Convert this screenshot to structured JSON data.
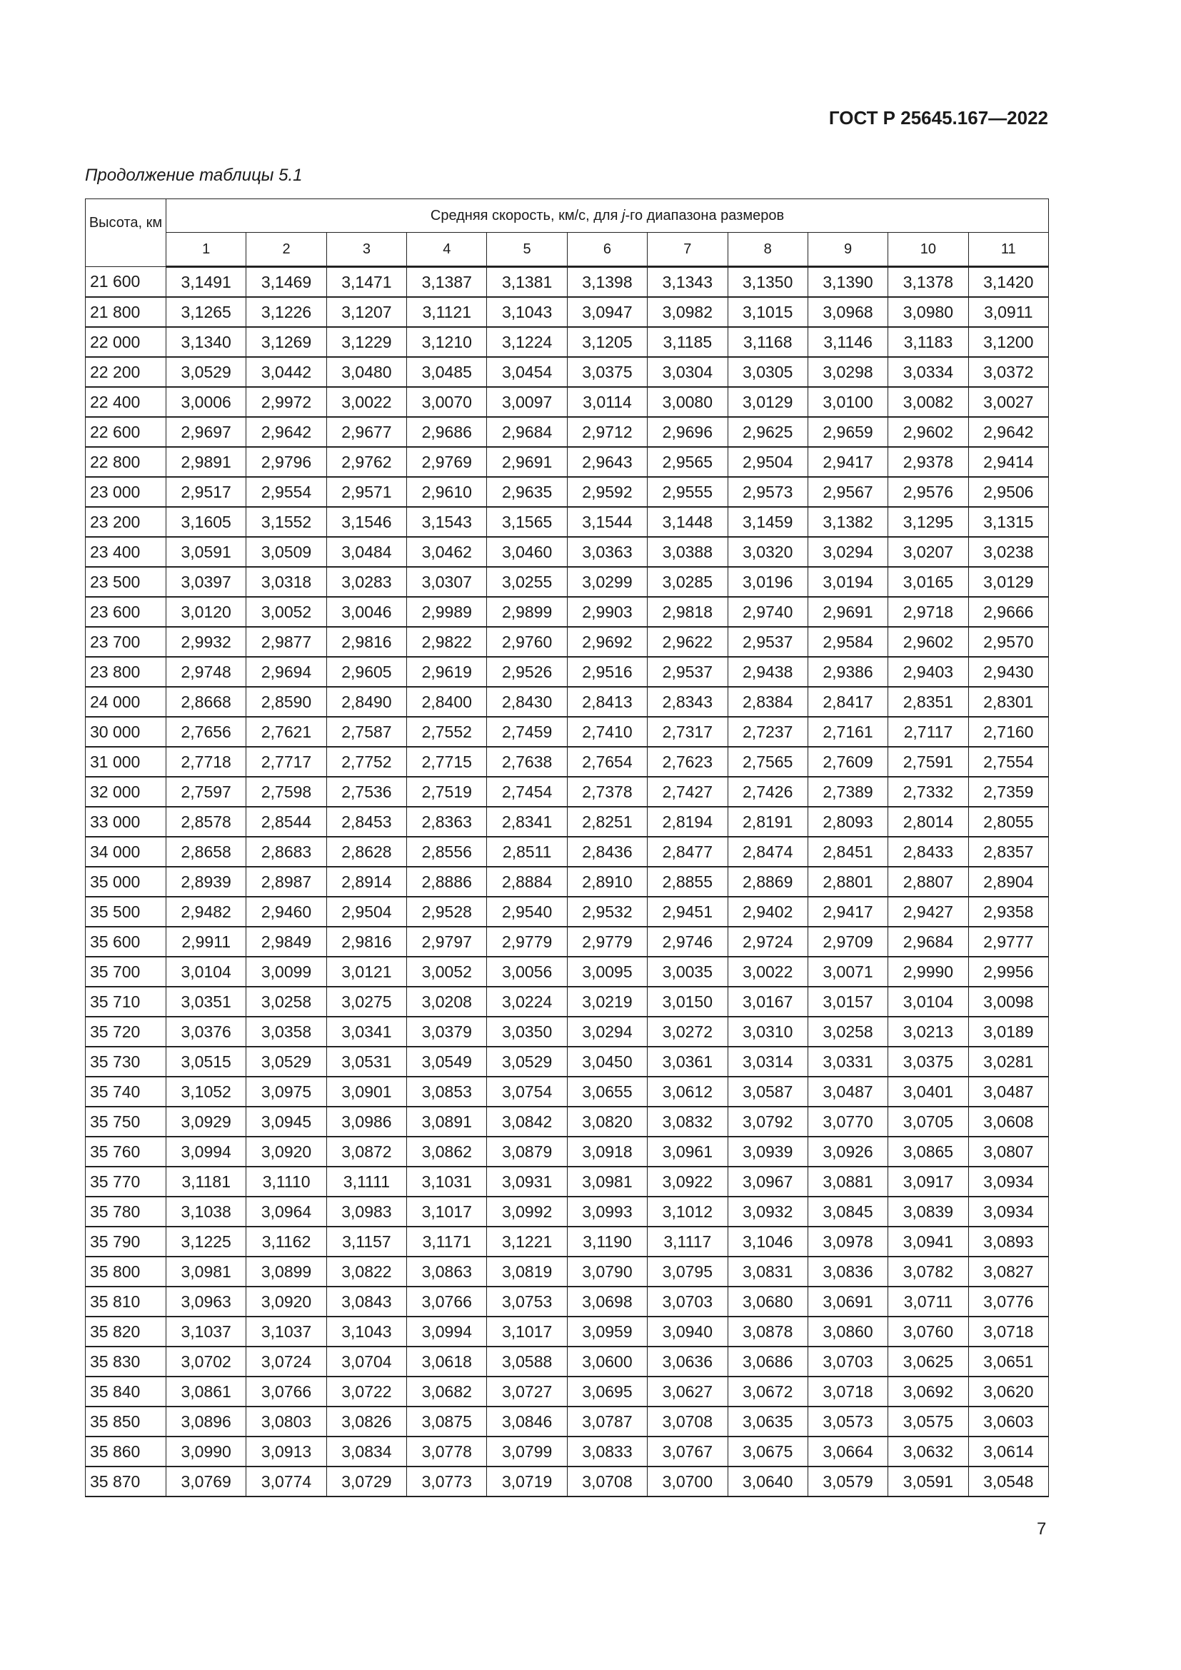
{
  "header": {
    "doc_code": "ГОСТ Р 25645.167—2022"
  },
  "caption": "Продолжение таблицы 5.1",
  "table": {
    "altitude_header": "Высота, км",
    "group_header_pre": "Средняя скорость, км/с, для ",
    "group_header_j": "j",
    "group_header_post": "-го диапазона размеров",
    "columns": [
      "1",
      "2",
      "3",
      "4",
      "5",
      "6",
      "7",
      "8",
      "9",
      "10",
      "11"
    ],
    "rows": [
      [
        "21 600",
        "3,1491",
        "3,1469",
        "3,1471",
        "3,1387",
        "3,1381",
        "3,1398",
        "3,1343",
        "3,1350",
        "3,1390",
        "3,1378",
        "3,1420"
      ],
      [
        "21 800",
        "3,1265",
        "3,1226",
        "3,1207",
        "3,1121",
        "3,1043",
        "3,0947",
        "3,0982",
        "3,1015",
        "3,0968",
        "3,0980",
        "3,0911"
      ],
      [
        "22 000",
        "3,1340",
        "3,1269",
        "3,1229",
        "3,1210",
        "3,1224",
        "3,1205",
        "3,1185",
        "3,1168",
        "3,1146",
        "3,1183",
        "3,1200"
      ],
      [
        "22 200",
        "3,0529",
        "3,0442",
        "3,0480",
        "3,0485",
        "3,0454",
        "3,0375",
        "3,0304",
        "3,0305",
        "3,0298",
        "3,0334",
        "3,0372"
      ],
      [
        "22 400",
        "3,0006",
        "2,9972",
        "3,0022",
        "3,0070",
        "3,0097",
        "3,0114",
        "3,0080",
        "3,0129",
        "3,0100",
        "3,0082",
        "3,0027"
      ],
      [
        "22 600",
        "2,9697",
        "2,9642",
        "2,9677",
        "2,9686",
        "2,9684",
        "2,9712",
        "2,9696",
        "2,9625",
        "2,9659",
        "2,9602",
        "2,9642"
      ],
      [
        "22 800",
        "2,9891",
        "2,9796",
        "2,9762",
        "2,9769",
        "2,9691",
        "2,9643",
        "2,9565",
        "2,9504",
        "2,9417",
        "2,9378",
        "2,9414"
      ],
      [
        "23 000",
        "2,9517",
        "2,9554",
        "2,9571",
        "2,9610",
        "2,9635",
        "2,9592",
        "2,9555",
        "2,9573",
        "2,9567",
        "2,9576",
        "2,9506"
      ],
      [
        "23 200",
        "3,1605",
        "3,1552",
        "3,1546",
        "3,1543",
        "3,1565",
        "3,1544",
        "3,1448",
        "3,1459",
        "3,1382",
        "3,1295",
        "3,1315"
      ],
      [
        "23 400",
        "3,0591",
        "3,0509",
        "3,0484",
        "3,0462",
        "3,0460",
        "3,0363",
        "3,0388",
        "3,0320",
        "3,0294",
        "3,0207",
        "3,0238"
      ],
      [
        "23 500",
        "3,0397",
        "3,0318",
        "3,0283",
        "3,0307",
        "3,0255",
        "3,0299",
        "3,0285",
        "3,0196",
        "3,0194",
        "3,0165",
        "3,0129"
      ],
      [
        "23 600",
        "3,0120",
        "3,0052",
        "3,0046",
        "2,9989",
        "2,9899",
        "2,9903",
        "2,9818",
        "2,9740",
        "2,9691",
        "2,9718",
        "2,9666"
      ],
      [
        "23 700",
        "2,9932",
        "2,9877",
        "2,9816",
        "2,9822",
        "2,9760",
        "2,9692",
        "2,9622",
        "2,9537",
        "2,9584",
        "2,9602",
        "2,9570"
      ],
      [
        "23 800",
        "2,9748",
        "2,9694",
        "2,9605",
        "2,9619",
        "2,9526",
        "2,9516",
        "2,9537",
        "2,9438",
        "2,9386",
        "2,9403",
        "2,9430"
      ],
      [
        "24 000",
        "2,8668",
        "2,8590",
        "2,8490",
        "2,8400",
        "2,8430",
        "2,8413",
        "2,8343",
        "2,8384",
        "2,8417",
        "2,8351",
        "2,8301"
      ],
      [
        "30 000",
        "2,7656",
        "2,7621",
        "2,7587",
        "2,7552",
        "2,7459",
        "2,7410",
        "2,7317",
        "2,7237",
        "2,7161",
        "2,7117",
        "2,7160"
      ],
      [
        "31 000",
        "2,7718",
        "2,7717",
        "2,7752",
        "2,7715",
        "2,7638",
        "2,7654",
        "2,7623",
        "2,7565",
        "2,7609",
        "2,7591",
        "2,7554"
      ],
      [
        "32 000",
        "2,7597",
        "2,7598",
        "2,7536",
        "2,7519",
        "2,7454",
        "2,7378",
        "2,7427",
        "2,7426",
        "2,7389",
        "2,7332",
        "2,7359"
      ],
      [
        "33 000",
        "2,8578",
        "2,8544",
        "2,8453",
        "2,8363",
        "2,8341",
        "2,8251",
        "2,8194",
        "2,8191",
        "2,8093",
        "2,8014",
        "2,8055"
      ],
      [
        "34 000",
        "2,8658",
        "2,8683",
        "2,8628",
        "2,8556",
        "2,8511",
        "2,8436",
        "2,8477",
        "2,8474",
        "2,8451",
        "2,8433",
        "2,8357"
      ],
      [
        "35 000",
        "2,8939",
        "2,8987",
        "2,8914",
        "2,8886",
        "2,8884",
        "2,8910",
        "2,8855",
        "2,8869",
        "2,8801",
        "2,8807",
        "2,8904"
      ],
      [
        "35 500",
        "2,9482",
        "2,9460",
        "2,9504",
        "2,9528",
        "2,9540",
        "2,9532",
        "2,9451",
        "2,9402",
        "2,9417",
        "2,9427",
        "2,9358"
      ],
      [
        "35 600",
        "2,9911",
        "2,9849",
        "2,9816",
        "2,9797",
        "2,9779",
        "2,9779",
        "2,9746",
        "2,9724",
        "2,9709",
        "2,9684",
        "2,9777"
      ],
      [
        "35 700",
        "3,0104",
        "3,0099",
        "3,0121",
        "3,0052",
        "3,0056",
        "3,0095",
        "3,0035",
        "3,0022",
        "3,0071",
        "2,9990",
        "2,9956"
      ],
      [
        "35 710",
        "3,0351",
        "3,0258",
        "3,0275",
        "3,0208",
        "3,0224",
        "3,0219",
        "3,0150",
        "3,0167",
        "3,0157",
        "3,0104",
        "3,0098"
      ],
      [
        "35 720",
        "3,0376",
        "3,0358",
        "3,0341",
        "3,0379",
        "3,0350",
        "3,0294",
        "3,0272",
        "3,0310",
        "3,0258",
        "3,0213",
        "3,0189"
      ],
      [
        "35 730",
        "3,0515",
        "3,0529",
        "3,0531",
        "3,0549",
        "3,0529",
        "3,0450",
        "3,0361",
        "3,0314",
        "3,0331",
        "3,0375",
        "3,0281"
      ],
      [
        "35 740",
        "3,1052",
        "3,0975",
        "3,0901",
        "3,0853",
        "3,0754",
        "3,0655",
        "3,0612",
        "3,0587",
        "3,0487",
        "3,0401",
        "3,0487"
      ],
      [
        "35 750",
        "3,0929",
        "3,0945",
        "3,0986",
        "3,0891",
        "3,0842",
        "3,0820",
        "3,0832",
        "3,0792",
        "3,0770",
        "3,0705",
        "3,0608"
      ],
      [
        "35 760",
        "3,0994",
        "3,0920",
        "3,0872",
        "3,0862",
        "3,0879",
        "3,0918",
        "3,0961",
        "3,0939",
        "3,0926",
        "3,0865",
        "3,0807"
      ],
      [
        "35 770",
        "3,1181",
        "3,1110",
        "3,1111",
        "3,1031",
        "3,0931",
        "3,0981",
        "3,0922",
        "3,0967",
        "3,0881",
        "3,0917",
        "3,0934"
      ],
      [
        "35 780",
        "3,1038",
        "3,0964",
        "3,0983",
        "3,1017",
        "3,0992",
        "3,0993",
        "3,1012",
        "3,0932",
        "3,0845",
        "3,0839",
        "3,0934"
      ],
      [
        "35 790",
        "3,1225",
        "3,1162",
        "3,1157",
        "3,1171",
        "3,1221",
        "3,1190",
        "3,1117",
        "3,1046",
        "3,0978",
        "3,0941",
        "3,0893"
      ],
      [
        "35 800",
        "3,0981",
        "3,0899",
        "3,0822",
        "3,0863",
        "3,0819",
        "3,0790",
        "3,0795",
        "3,0831",
        "3,0836",
        "3,0782",
        "3,0827"
      ],
      [
        "35 810",
        "3,0963",
        "3,0920",
        "3,0843",
        "3,0766",
        "3,0753",
        "3,0698",
        "3,0703",
        "3,0680",
        "3,0691",
        "3,0711",
        "3,0776"
      ],
      [
        "35 820",
        "3,1037",
        "3,1037",
        "3,1043",
        "3,0994",
        "3,1017",
        "3,0959",
        "3,0940",
        "3,0878",
        "3,0860",
        "3,0760",
        "3,0718"
      ],
      [
        "35 830",
        "3,0702",
        "3,0724",
        "3,0704",
        "3,0618",
        "3,0588",
        "3,0600",
        "3,0636",
        "3,0686",
        "3,0703",
        "3,0625",
        "3,0651"
      ],
      [
        "35 840",
        "3,0861",
        "3,0766",
        "3,0722",
        "3,0682",
        "3,0727",
        "3,0695",
        "3,0627",
        "3,0672",
        "3,0718",
        "3,0692",
        "3,0620"
      ],
      [
        "35 850",
        "3,0896",
        "3,0803",
        "3,0826",
        "3,0875",
        "3,0846",
        "3,0787",
        "3,0708",
        "3,0635",
        "3,0573",
        "3,0575",
        "3,0603"
      ],
      [
        "35 860",
        "3,0990",
        "3,0913",
        "3,0834",
        "3,0778",
        "3,0799",
        "3,0833",
        "3,0767",
        "3,0675",
        "3,0664",
        "3,0632",
        "3,0614"
      ],
      [
        "35 870",
        "3,0769",
        "3,0774",
        "3,0729",
        "3,0773",
        "3,0719",
        "3,0708",
        "3,0700",
        "3,0640",
        "3,0579",
        "3,0591",
        "3,0548"
      ]
    ]
  },
  "footer": {
    "page_number": "7"
  }
}
